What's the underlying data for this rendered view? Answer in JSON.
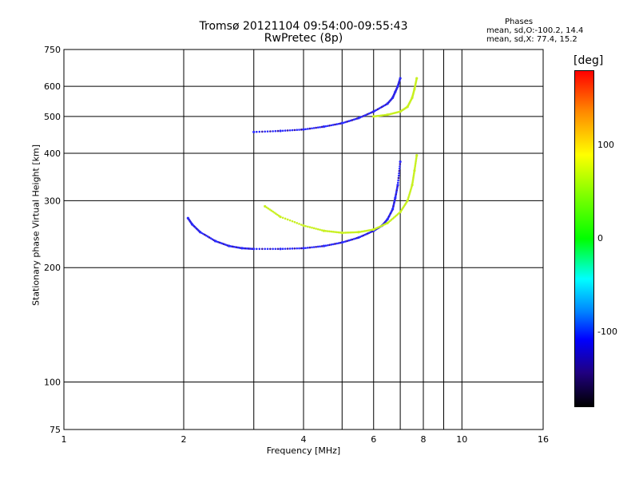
{
  "chart_data": {
    "type": "scatter",
    "title": "Tromsø 20121104 09:54:00-09:55:43",
    "subtitle": "RwPretec (8p)",
    "xlabel": "Frequency [MHz]",
    "ylabel": "Stationary phase Virtual Height [km]",
    "x_scale": "log",
    "y_scale": "log",
    "xlim": [
      1,
      16
    ],
    "ylim": [
      75,
      750
    ],
    "x_ticks": [
      1,
      2,
      4,
      6,
      8,
      10,
      16
    ],
    "x_tick_labels": [
      "1",
      "2",
      "4",
      "6",
      "8",
      "10",
      "16"
    ],
    "y_ticks": [
      75,
      100,
      200,
      300,
      400,
      500,
      600,
      750
    ],
    "y_tick_labels": [
      "75",
      "100",
      "200",
      "300",
      "400",
      "500",
      "600",
      "750"
    ],
    "grid": true,
    "phases_box": {
      "title": "Phases",
      "o_line": "mean, sd,O:-100.2, 14.4",
      "x_line": "mean, sd,X:  77.4, 15.2"
    },
    "colorbar": {
      "label": "[deg]",
      "range": [
        -180,
        180
      ],
      "ticks": [
        100,
        0,
        -100
      ],
      "tick_labels": [
        "100",
        "0",
        "-100"
      ]
    },
    "colors": {
      "o_mode": "#2a2aff",
      "o_mode_dark": "#3a1aa8",
      "x_mode": "#c8f020",
      "grid": "#000000"
    },
    "series": [
      {
        "name": "O",
        "x": [
          3.0,
          3.5,
          4.0,
          4.5,
          5.0,
          5.5,
          6.0,
          6.5,
          6.7,
          6.8,
          6.9,
          7.0,
          2.05,
          2.1,
          2.2,
          2.4,
          2.6,
          2.8,
          3.0,
          3.5,
          4.0,
          4.5,
          5.0,
          5.5,
          6.0,
          6.3,
          6.5,
          6.7,
          6.8,
          6.9,
          7.0
        ],
        "y": [
          455,
          458,
          462,
          470,
          480,
          495,
          515,
          540,
          560,
          580,
          600,
          630,
          270,
          260,
          248,
          235,
          228,
          225,
          224,
          224,
          225,
          228,
          233,
          240,
          250,
          258,
          268,
          285,
          305,
          330,
          380
        ]
      },
      {
        "name": "X",
        "x": [
          6.0,
          6.5,
          7.0,
          7.3,
          7.5,
          7.6,
          7.7,
          3.2,
          3.5,
          4.0,
          4.5,
          5.0,
          5.5,
          6.0,
          6.5,
          7.0,
          7.3,
          7.5,
          7.6,
          7.7
        ],
        "y": [
          500,
          505,
          515,
          530,
          560,
          590,
          630,
          290,
          272,
          258,
          250,
          247,
          248,
          252,
          262,
          280,
          300,
          330,
          360,
          395
        ]
      }
    ]
  }
}
